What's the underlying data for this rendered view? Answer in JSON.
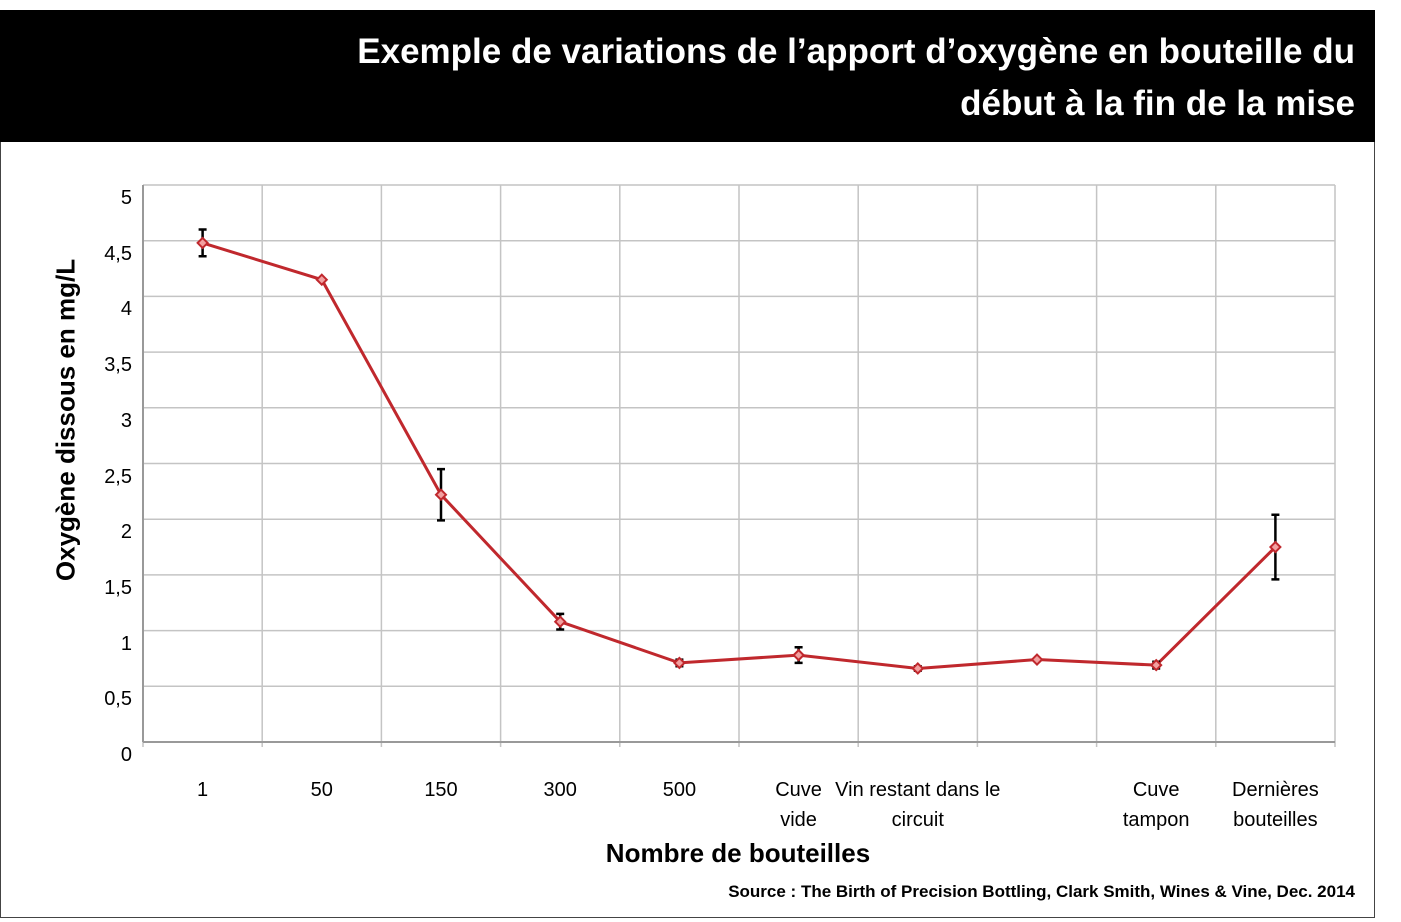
{
  "chart_data": {
    "type": "line",
    "title": "Exemple de variations de l’apport d’oxygène en bouteille du\ndébut à la fin de la mise",
    "x_label": "Nombre de bouteilles",
    "y_label": "Oxygène dissous en mg/L",
    "source": "Source : The Birth of Precision Bottling, Clark Smith,  Wines & Vine,  Dec. 2014",
    "categories": [
      "1",
      "50",
      "150",
      "300",
      "500",
      "Cuve\nvide",
      "Vin restant dans le\ncircuit",
      "",
      "Cuve\ntampon",
      "Dernières\nbouteilles"
    ],
    "series": [
      {
        "name": "Oxygène dissous",
        "color": "#c0282d",
        "values": [
          4.48,
          4.15,
          2.22,
          1.08,
          0.71,
          0.78,
          0.66,
          0.74,
          0.69,
          1.75
        ],
        "errors": [
          0.12,
          null,
          0.23,
          0.07,
          0.03,
          0.07,
          0.02,
          null,
          0.03,
          0.29
        ]
      }
    ],
    "ylim": [
      0,
      5
    ],
    "yticks": [
      0,
      {
        "value": 0.5,
        "label": "0,5"
      },
      1,
      {
        "value": 1.5,
        "label": "1,5"
      },
      2,
      {
        "value": 2.5,
        "label": "2,5"
      },
      3,
      {
        "value": 3.5,
        "label": "3,5"
      },
      4,
      {
        "value": 4.5,
        "label": "4,5"
      },
      5
    ],
    "grid": true
  }
}
